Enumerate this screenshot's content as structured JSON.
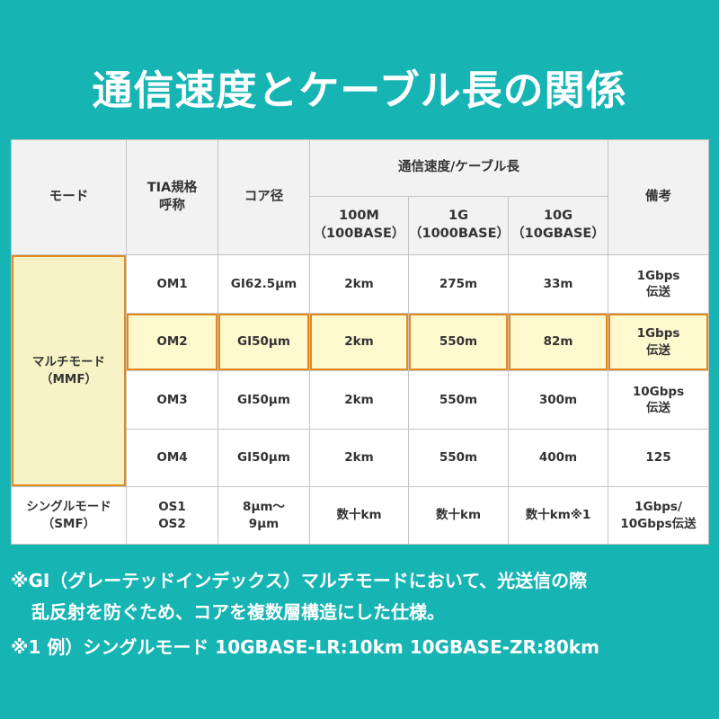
{
  "title": "通信速度とケーブル長の関係",
  "colors": {
    "background": "#17b4b4",
    "header": "#f2f2f2",
    "highlight": "#fff9cf",
    "highlight_border": "#e3891f",
    "mmf": "#f8f3c6"
  },
  "table": {
    "headers": {
      "mode": "モード",
      "tia_line1": "TIA規格",
      "tia_line2": "呼称",
      "core": "コア径",
      "speed_group": "通信速度/ケーブル長",
      "c100_line1": "100M",
      "c100_line2": "（100BASE）",
      "c1g_line1": "1G",
      "c1g_line2": "（1000BASE）",
      "c10g_line1": "10G",
      "c10g_line2": "（10GBASE）",
      "notes": "備考"
    },
    "mmf_line1": "マルチモード",
    "mmf_line2": "（MMF）",
    "smf_line1": "シングルモード",
    "smf_line2": "（SMF）",
    "rows": [
      {
        "tia": "OM1",
        "core": "GI62.5μm",
        "m100": "2km",
        "g1": "275m",
        "g10": "33m",
        "note1": "1Gbps",
        "note2": "伝送"
      },
      {
        "tia": "OM2",
        "core": "GI50μm",
        "m100": "2km",
        "g1": "550m",
        "g10": "82m",
        "note1": "1Gbps",
        "note2": "伝送"
      },
      {
        "tia": "OM3",
        "core": "GI50μm",
        "m100": "2km",
        "g1": "550m",
        "g10": "300m",
        "note1": "10Gbps",
        "note2": "伝送"
      },
      {
        "tia": "OM4",
        "core": "GI50μm",
        "m100": "2km",
        "g1": "550m",
        "g10": "400m",
        "note1": "125",
        "note2": ""
      },
      {
        "tia": "OS1",
        "tia2": "OS2",
        "core": "8μm〜",
        "core2": "9μm",
        "m100": "数十km",
        "g1": "数十km",
        "g10": "数十km※1",
        "note1": "1Gbps/",
        "note2": "10Gbps伝送"
      }
    ]
  },
  "notes": {
    "line1": "※GI（グレーテッドインデックス）マルチモードにおいて、光送信の際",
    "line2": "乱反射を防ぐため、コアを複数層構造にした仕様。",
    "line3": "※1 例）シングルモード 10GBASE-LR:10km 10GBASE-ZR:80km"
  }
}
